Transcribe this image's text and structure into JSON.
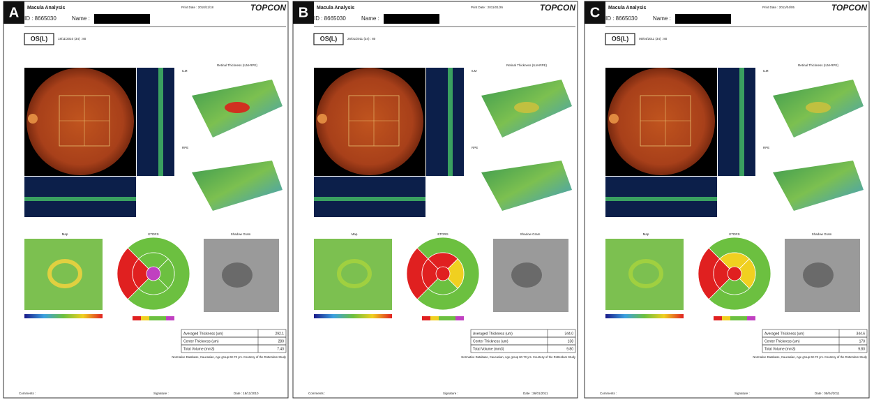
{
  "panels": [
    {
      "label": "A",
      "report_title": "Macula Analysis",
      "print_date": "Print Date : 2010/11/18",
      "brand": "TOPCON",
      "id": "ID : 8665030",
      "name_label": "Name :",
      "eye": "OS(L)",
      "exam_date": "18/11/2010 (34) : 80",
      "thickness_title": "Retinal Thickness (ILM-RPE)",
      "ilm": "ILM",
      "rpe": "RPE",
      "map_title": "Map",
      "etdrs_title": "ETDRS",
      "shadow_title": "Shadow Gram",
      "table": [
        [
          "Averaged Thickness (um)",
          "292.1"
        ],
        [
          "Center Thickness (um)",
          "280"
        ],
        [
          "Total Volume (mm3)",
          "7.40"
        ]
      ],
      "note": "Normative Database, Caucasian, Age group 60-70 yrs. Courtesy of the Rotterdam Study",
      "comments": "Comments :",
      "signature": "Signature :",
      "date": "Date : 18/11/2010"
    },
    {
      "label": "B",
      "report_title": "Macula Analysis",
      "print_date": "Print Date : 2011/01/26",
      "brand": "TOPCON",
      "id": "ID : 8665030",
      "name_label": "Name :",
      "eye": "OS(L)",
      "exam_date": "26/01/2011 (34) : 80",
      "thickness_title": "Retinal Thickness (ILM-RPE)",
      "ilm": "ILM",
      "rpe": "RPE",
      "map_title": "Map",
      "etdrs_title": "ETDRS",
      "shadow_title": "Shadow Gram",
      "table": [
        [
          "Averaged Thickness (um)",
          "344.0"
        ],
        [
          "Center Thickness (um)",
          "138"
        ],
        [
          "Total Volume (mm3)",
          "9.80"
        ]
      ],
      "note": "Normative Database, Caucasian, Age group 60-70 yrs. Courtesy of the Rotterdam Study",
      "comments": "Comments :",
      "signature": "Signature :",
      "date": "Date : 26/01/2011"
    },
    {
      "label": "C",
      "report_title": "Macula Analysis",
      "print_date": "Print Date : 2011/04/05",
      "brand": "TOPCON",
      "id": "ID : 8665030",
      "name_label": "Name :",
      "eye": "OS(L)",
      "exam_date": "05/04/2011 (34) : 80",
      "thickness_title": "Retinal Thickness (ILM-RPE)",
      "ilm": "ILM",
      "rpe": "RPE",
      "map_title": "Map",
      "etdrs_title": "ETDRS",
      "shadow_title": "Shadow Gram",
      "table": [
        [
          "Averaged Thickness (um)",
          "344.6"
        ],
        [
          "Center Thickness (um)",
          "170"
        ],
        [
          "Total Volume (mm3)",
          "9.80"
        ]
      ],
      "note": "Normative Database, Caucasian, Age group 60-70 yrs. Courtesy of the Rotterdam Study",
      "comments": "Comments :",
      "signature": "Signature :",
      "date": "Date : 05/04/2011"
    }
  ]
}
